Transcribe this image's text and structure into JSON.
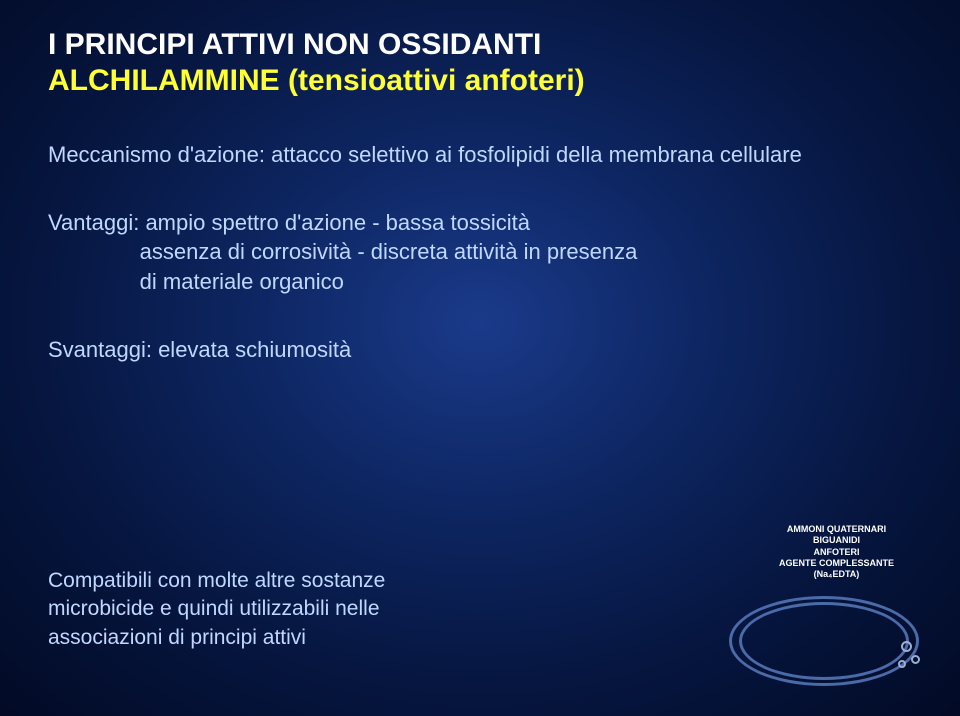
{
  "title": {
    "line1": "I PRINCIPI ATTIVI NON OSSIDANTI",
    "line2": "ALCHILAMMINE (tensioattivi anfoteri)"
  },
  "mechanism": {
    "text": "Meccanismo d'azione: attacco selettivo ai fosfolipidi della membrana cellulare"
  },
  "advantages": {
    "line1": "Vantaggi: ampio spettro d'azione  -  bassa tossicità",
    "line2": "               assenza di corrosività  -  discreta attività in presenza",
    "line3": "               di materiale organico"
  },
  "disadvantages": {
    "text": "Svantaggi:  elevata schiumosità"
  },
  "compat": {
    "line1": "Compatibili con molte altre sostanze",
    "line2": "microbicide e quindi utilizzabili nelle",
    "line3": "associazioni di principi attivi"
  },
  "legend": {
    "l1": "AMMONI QUATERNARI",
    "l2": "BIGUANIDI",
    "l3": "ANFOTERI",
    "l4": "AGENTE COMPLESSANTE",
    "l5": "(Na₄EDTA)"
  },
  "colors": {
    "title": "#ffffff",
    "subtitle": "#ffff33",
    "body": "#c0d8ff",
    "ellipse": "#4a6aa8",
    "bubble": "#9ab0d0"
  }
}
